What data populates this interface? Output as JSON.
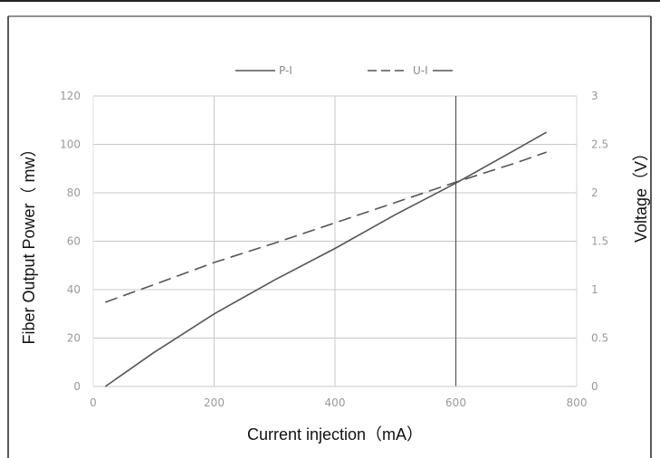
{
  "chart_data": {
    "type": "line",
    "xlabel": "Current injection（mA）",
    "ylabel": "Fiber Output Power（ mw）",
    "y2label": "Voltage（V）",
    "xlim": [
      0,
      800
    ],
    "ylim": [
      0,
      120
    ],
    "y2lim": [
      0,
      3
    ],
    "x_ticks": [
      0,
      200,
      400,
      600,
      800
    ],
    "y_ticks": [
      0,
      20,
      40,
      60,
      80,
      100,
      120
    ],
    "y2_ticks": [
      0,
      0.5,
      1,
      1.5,
      2,
      2.5,
      3
    ],
    "grid": true,
    "legend_position": "top",
    "series": [
      {
        "name": "P-I",
        "axis": "left",
        "style": "solid",
        "x": [
          20,
          100,
          200,
          300,
          400,
          500,
          600,
          700,
          750
        ],
        "y": [
          0,
          14,
          30,
          44,
          57,
          71,
          84,
          98,
          105
        ]
      },
      {
        "name": "U-I",
        "axis": "right",
        "style": "dashed",
        "x": [
          20,
          100,
          200,
          300,
          400,
          500,
          600,
          700,
          750
        ],
        "y": [
          0.87,
          1.05,
          1.28,
          1.48,
          1.69,
          1.9,
          2.11,
          2.31,
          2.42
        ]
      }
    ],
    "colors": {
      "line": "#555555",
      "grid": "#c8c8c8",
      "frame": "#222222"
    }
  }
}
